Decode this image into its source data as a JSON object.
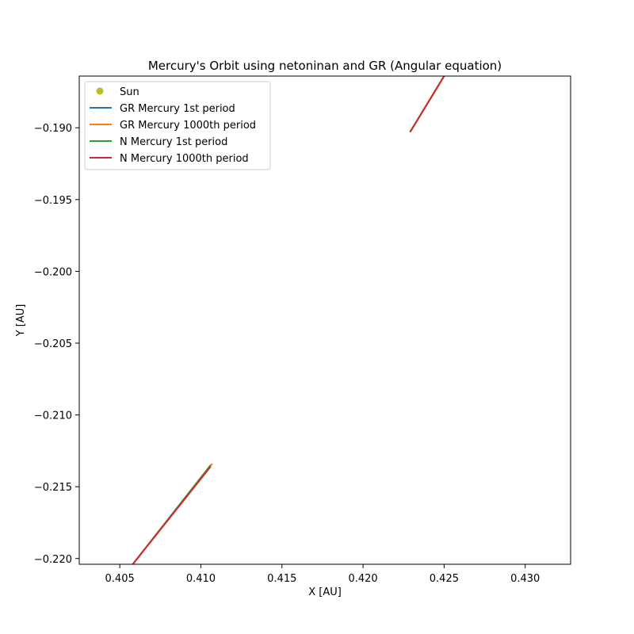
{
  "chart_data": {
    "type": "line",
    "title": "Mercury's Orbit using netoninan and GR (Angular equation)",
    "xlabel": "X [AU]",
    "ylabel": "Y [AU]",
    "xlim": [
      0.4025,
      0.4328
    ],
    "ylim": [
      -0.2204,
      -0.1864
    ],
    "xticks": [
      0.405,
      0.41,
      0.415,
      0.42,
      0.425,
      0.43
    ],
    "xtick_labels": [
      "0.405",
      "0.410",
      "0.415",
      "0.420",
      "0.425",
      "0.430"
    ],
    "yticks": [
      -0.19,
      -0.195,
      -0.2,
      -0.205,
      -0.21,
      -0.215,
      -0.22
    ],
    "ytick_labels": [
      "−0.190",
      "−0.195",
      "−0.200",
      "−0.205",
      "−0.210",
      "−0.215",
      "−0.220"
    ],
    "grid": false,
    "legend_position": "top-left",
    "series": [
      {
        "name": "Sun",
        "kind": "marker",
        "color": "#bcbd22",
        "points": []
      },
      {
        "name": "GR Mercury 1st period",
        "kind": "line",
        "color": "#1f77b4",
        "segments": [
          [
            [
              0.4058,
              -0.2204
            ],
            [
              0.4106,
              -0.2135
            ]
          ],
          [
            [
              0.4229,
              -0.1903
            ],
            [
              0.425,
              -0.1864
            ]
          ]
        ]
      },
      {
        "name": "GR Mercury 1000th period",
        "kind": "line",
        "color": "#ff7f0e",
        "segments": [
          [
            [
              0.4058,
              -0.2204
            ],
            [
              0.4107,
              -0.2134
            ]
          ],
          [
            [
              0.4229,
              -0.1903
            ],
            [
              0.425,
              -0.1864
            ]
          ]
        ]
      },
      {
        "name": "N Mercury 1st period",
        "kind": "line",
        "color": "#2ca02c",
        "segments": [
          [
            [
              0.4058,
              -0.2204
            ],
            [
              0.4106,
              -0.2135
            ]
          ],
          [
            [
              0.4229,
              -0.1903
            ],
            [
              0.425,
              -0.1864
            ]
          ]
        ]
      },
      {
        "name": "N Mercury 1000th period",
        "kind": "line",
        "color": "#d62728",
        "segments": [
          [
            [
              0.4058,
              -0.2204
            ],
            [
              0.4106,
              -0.2136
            ]
          ],
          [
            [
              0.4229,
              -0.1903
            ],
            [
              0.425,
              -0.1864
            ]
          ]
        ]
      }
    ]
  }
}
